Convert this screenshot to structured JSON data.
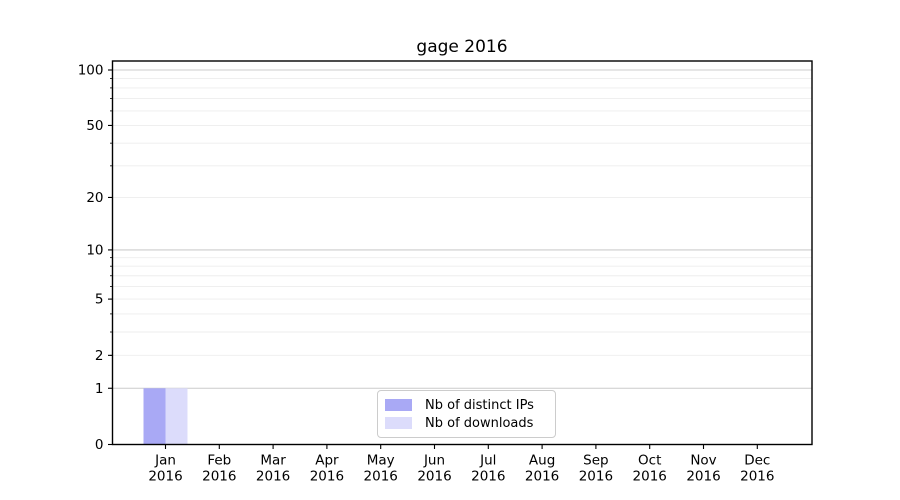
{
  "chart_data": {
    "type": "bar",
    "title": "gage 2016",
    "categories": [
      "Jan",
      "Feb",
      "Mar",
      "Apr",
      "May",
      "Jun",
      "Jul",
      "Aug",
      "Sep",
      "Oct",
      "Nov",
      "Dec"
    ],
    "category_year": "2016",
    "series": [
      {
        "name": "Nb of distinct IPs",
        "color": "#a9a9f5",
        "values": [
          1,
          0,
          0,
          0,
          0,
          0,
          0,
          0,
          0,
          0,
          0,
          0
        ]
      },
      {
        "name": "Nb of downloads",
        "color": "#dcdcfb",
        "values": [
          1,
          0,
          0,
          0,
          0,
          0,
          0,
          0,
          0,
          0,
          0,
          0
        ]
      }
    ],
    "y_axis": {
      "scale": "log1p",
      "tick_values": [
        0,
        1,
        2,
        5,
        10,
        20,
        50,
        100
      ],
      "tick_labels": [
        "0",
        "1",
        "2",
        "5",
        "10",
        "20",
        "50",
        "100"
      ],
      "major_grid_values": [
        1,
        10,
        100
      ],
      "minor_grid_values": [
        2,
        3,
        4,
        5,
        6,
        7,
        8,
        9,
        20,
        30,
        40,
        50,
        60,
        70,
        80,
        90
      ],
      "ylim": [
        0,
        111
      ]
    },
    "grid": true,
    "legend_position": "lower center",
    "colors": {
      "axis": "#000000",
      "major_grid": "#cccccc",
      "minor_grid": "#ededed",
      "background": "#ffffff",
      "legend_border": "#cccccc",
      "text": "#000000"
    }
  }
}
